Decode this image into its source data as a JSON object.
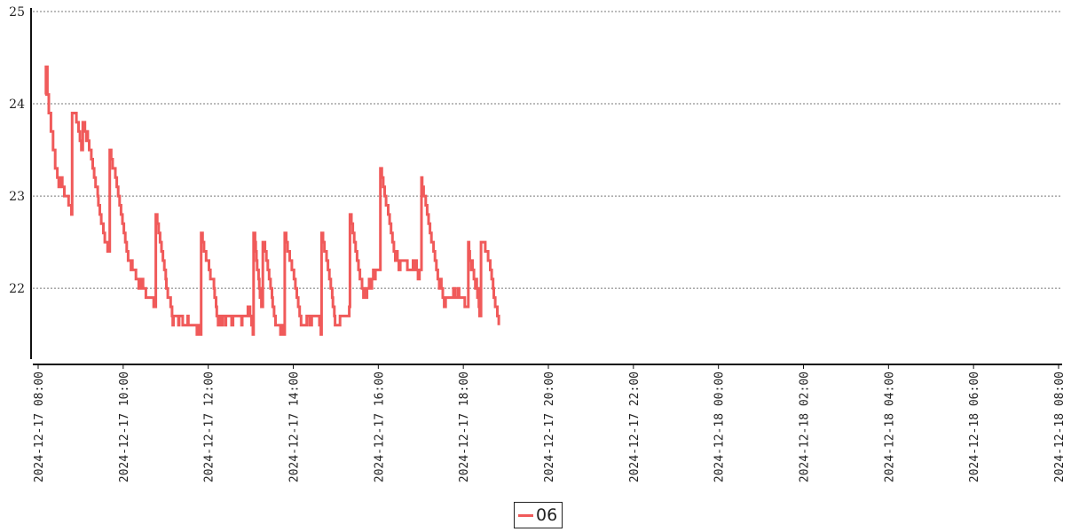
{
  "chart_data": {
    "type": "line",
    "title": "",
    "xlabel": "",
    "ylabel": "",
    "ylim": [
      21.3,
      25.0
    ],
    "xlim": [
      "2024-12-17 08:00",
      "2024-12-18 08:00"
    ],
    "y_ticks": [
      "22",
      "23",
      "24",
      "25"
    ],
    "x_ticks": [
      "2024-12-17 08:00",
      "2024-12-17 10:00",
      "2024-12-17 12:00",
      "2024-12-17 14:00",
      "2024-12-17 16:00",
      "2024-12-17 18:00",
      "2024-12-17 20:00",
      "2024-12-17 22:00",
      "2024-12-18 00:00",
      "2024-12-18 02:00",
      "2024-12-18 04:00",
      "2024-12-18 06:00",
      "2024-12-18 08:00"
    ],
    "grid": "horizontal dotted",
    "legend_placement": "bottom-center",
    "color": "#f05a5a",
    "series": [
      {
        "name": "06",
        "points": [
          [
            "2024-12-17 08:10",
            24.1
          ],
          [
            "2024-12-17 08:11",
            24.4
          ],
          [
            "2024-12-17 08:13",
            24.1
          ],
          [
            "2024-12-17 08:15",
            23.9
          ],
          [
            "2024-12-17 08:18",
            23.7
          ],
          [
            "2024-12-17 08:21",
            23.5
          ],
          [
            "2024-12-17 08:24",
            23.3
          ],
          [
            "2024-12-17 08:27",
            23.2
          ],
          [
            "2024-12-17 08:29",
            23.1
          ],
          [
            "2024-12-17 08:30",
            23.2
          ],
          [
            "2024-12-17 08:31",
            23.1
          ],
          [
            "2024-12-17 08:32",
            23.2
          ],
          [
            "2024-12-17 08:34",
            23.1
          ],
          [
            "2024-12-17 08:37",
            23.0
          ],
          [
            "2024-12-17 08:43",
            22.9
          ],
          [
            "2024-12-17 08:47",
            22.8
          ],
          [
            "2024-12-17 08:48",
            23.9
          ],
          [
            "2024-12-17 08:54",
            23.8
          ],
          [
            "2024-12-17 08:57",
            23.7
          ],
          [
            "2024-12-17 08:59",
            23.6
          ],
          [
            "2024-12-17 09:01",
            23.5
          ],
          [
            "2024-12-17 09:03",
            23.8
          ],
          [
            "2024-12-17 09:06",
            23.7
          ],
          [
            "2024-12-17 09:08",
            23.6
          ],
          [
            "2024-12-17 09:09",
            23.7
          ],
          [
            "2024-12-17 09:10",
            23.6
          ],
          [
            "2024-12-17 09:12",
            23.5
          ],
          [
            "2024-12-17 09:15",
            23.4
          ],
          [
            "2024-12-17 09:17",
            23.3
          ],
          [
            "2024-12-17 09:19",
            23.2
          ],
          [
            "2024-12-17 09:21",
            23.1
          ],
          [
            "2024-12-17 09:24",
            23.0
          ],
          [
            "2024-12-17 09:25",
            22.9
          ],
          [
            "2024-12-17 09:27",
            22.8
          ],
          [
            "2024-12-17 09:29",
            22.7
          ],
          [
            "2024-12-17 09:32",
            22.6
          ],
          [
            "2024-12-17 09:34",
            22.5
          ],
          [
            "2024-12-17 09:38",
            22.4
          ],
          [
            "2024-12-17 09:39",
            22.5
          ],
          [
            "2024-12-17 09:40",
            22.4
          ],
          [
            "2024-12-17 09:41",
            23.5
          ],
          [
            "2024-12-17 09:43",
            23.4
          ],
          [
            "2024-12-17 09:45",
            23.3
          ],
          [
            "2024-12-17 09:49",
            23.2
          ],
          [
            "2024-12-17 09:51",
            23.1
          ],
          [
            "2024-12-17 09:53",
            23.0
          ],
          [
            "2024-12-17 09:55",
            22.9
          ],
          [
            "2024-12-17 09:57",
            22.8
          ],
          [
            "2024-12-17 09:59",
            22.7
          ],
          [
            "2024-12-17 10:01",
            22.6
          ],
          [
            "2024-12-17 10:03",
            22.5
          ],
          [
            "2024-12-17 10:05",
            22.4
          ],
          [
            "2024-12-17 10:07",
            22.3
          ],
          [
            "2024-12-17 10:11",
            22.2
          ],
          [
            "2024-12-17 10:12",
            22.3
          ],
          [
            "2024-12-17 10:13",
            22.2
          ],
          [
            "2024-12-17 10:18",
            22.1
          ],
          [
            "2024-12-17 10:22",
            22.0
          ],
          [
            "2024-12-17 10:23",
            22.1
          ],
          [
            "2024-12-17 10:25",
            22.0
          ],
          [
            "2024-12-17 10:26",
            22.1
          ],
          [
            "2024-12-17 10:28",
            22.0
          ],
          [
            "2024-12-17 10:32",
            21.9
          ],
          [
            "2024-12-17 10:43",
            21.8
          ],
          [
            "2024-12-17 10:46",
            22.8
          ],
          [
            "2024-12-17 10:48",
            22.7
          ],
          [
            "2024-12-17 10:50",
            22.6
          ],
          [
            "2024-12-17 10:52",
            22.5
          ],
          [
            "2024-12-17 10:54",
            22.4
          ],
          [
            "2024-12-17 10:56",
            22.3
          ],
          [
            "2024-12-17 10:58",
            22.2
          ],
          [
            "2024-12-17 11:00",
            22.1
          ],
          [
            "2024-12-17 11:01",
            22.0
          ],
          [
            "2024-12-17 11:03",
            21.9
          ],
          [
            "2024-12-17 11:07",
            21.8
          ],
          [
            "2024-12-17 11:09",
            21.7
          ],
          [
            "2024-12-17 11:10",
            21.6
          ],
          [
            "2024-12-17 11:11",
            21.7
          ],
          [
            "2024-12-17 11:18",
            21.6
          ],
          [
            "2024-12-17 11:19",
            21.7
          ],
          [
            "2024-12-17 11:24",
            21.6
          ],
          [
            "2024-12-17 11:31",
            21.7
          ],
          [
            "2024-12-17 11:32",
            21.6
          ],
          [
            "2024-12-17 11:44",
            21.5
          ],
          [
            "2024-12-17 11:46",
            21.6
          ],
          [
            "2024-12-17 11:47",
            21.5
          ],
          [
            "2024-12-17 11:50",
            22.6
          ],
          [
            "2024-12-17 11:52",
            22.5
          ],
          [
            "2024-12-17 11:54",
            22.4
          ],
          [
            "2024-12-17 11:57",
            22.3
          ],
          [
            "2024-12-17 12:01",
            22.2
          ],
          [
            "2024-12-17 12:03",
            22.1
          ],
          [
            "2024-12-17 12:08",
            22.0
          ],
          [
            "2024-12-17 12:09",
            21.9
          ],
          [
            "2024-12-17 12:11",
            21.8
          ],
          [
            "2024-12-17 12:12",
            21.7
          ],
          [
            "2024-12-17 12:14",
            21.6
          ],
          [
            "2024-12-17 12:16",
            21.7
          ],
          [
            "2024-12-17 12:19",
            21.6
          ],
          [
            "2024-12-17 12:20",
            21.7
          ],
          [
            "2024-12-17 12:24",
            21.6
          ],
          [
            "2024-12-17 12:25",
            21.7
          ],
          [
            "2024-12-17 12:33",
            21.6
          ],
          [
            "2024-12-17 12:35",
            21.7
          ],
          [
            "2024-12-17 12:47",
            21.6
          ],
          [
            "2024-12-17 12:48",
            21.7
          ],
          [
            "2024-12-17 12:56",
            21.8
          ],
          [
            "2024-12-17 12:59",
            21.7
          ],
          [
            "2024-12-17 13:01",
            21.6
          ],
          [
            "2024-12-17 13:03",
            21.5
          ],
          [
            "2024-12-17 13:04",
            22.6
          ],
          [
            "2024-12-17 13:06",
            22.5
          ],
          [
            "2024-12-17 13:07",
            22.4
          ],
          [
            "2024-12-17 13:08",
            22.3
          ],
          [
            "2024-12-17 13:09",
            22.2
          ],
          [
            "2024-12-17 13:11",
            22.1
          ],
          [
            "2024-12-17 13:12",
            22.0
          ],
          [
            "2024-12-17 13:13",
            21.9
          ],
          [
            "2024-12-17 13:14",
            22.0
          ],
          [
            "2024-12-17 13:15",
            21.8
          ],
          [
            "2024-12-17 13:17",
            22.5
          ],
          [
            "2024-12-17 13:20",
            22.4
          ],
          [
            "2024-12-17 13:22",
            22.3
          ],
          [
            "2024-12-17 13:24",
            22.2
          ],
          [
            "2024-12-17 13:26",
            22.1
          ],
          [
            "2024-12-17 13:28",
            22.0
          ],
          [
            "2024-12-17 13:30",
            21.9
          ],
          [
            "2024-12-17 13:31",
            21.8
          ],
          [
            "2024-12-17 13:33",
            21.7
          ],
          [
            "2024-12-17 13:35",
            21.6
          ],
          [
            "2024-12-17 13:42",
            21.5
          ],
          [
            "2024-12-17 13:44",
            21.6
          ],
          [
            "2024-12-17 13:45",
            21.5
          ],
          [
            "2024-12-17 13:48",
            22.6
          ],
          [
            "2024-12-17 13:50",
            22.5
          ],
          [
            "2024-12-17 13:52",
            22.4
          ],
          [
            "2024-12-17 13:55",
            22.3
          ],
          [
            "2024-12-17 13:58",
            22.2
          ],
          [
            "2024-12-17 14:01",
            22.1
          ],
          [
            "2024-12-17 14:03",
            22.0
          ],
          [
            "2024-12-17 14:05",
            21.9
          ],
          [
            "2024-12-17 14:07",
            21.8
          ],
          [
            "2024-12-17 14:09",
            21.7
          ],
          [
            "2024-12-17 14:11",
            21.6
          ],
          [
            "2024-12-17 14:19",
            21.7
          ],
          [
            "2024-12-17 14:23",
            21.6
          ],
          [
            "2024-12-17 14:26",
            21.7
          ],
          [
            "2024-12-17 14:35",
            21.7
          ],
          [
            "2024-12-17 14:37",
            21.6
          ],
          [
            "2024-12-17 14:39",
            21.5
          ],
          [
            "2024-12-17 14:40",
            22.6
          ],
          [
            "2024-12-17 14:42",
            22.5
          ],
          [
            "2024-12-17 14:44",
            22.4
          ],
          [
            "2024-12-17 14:47",
            22.3
          ],
          [
            "2024-12-17 14:49",
            22.2
          ],
          [
            "2024-12-17 14:51",
            22.1
          ],
          [
            "2024-12-17 14:53",
            22.0
          ],
          [
            "2024-12-17 14:55",
            21.9
          ],
          [
            "2024-12-17 14:56",
            21.8
          ],
          [
            "2024-12-17 14:58",
            21.7
          ],
          [
            "2024-12-17 14:59",
            21.6
          ],
          [
            "2024-12-17 15:06",
            21.7
          ],
          [
            "2024-12-17 15:19",
            21.8
          ],
          [
            "2024-12-17 15:20",
            22.8
          ],
          [
            "2024-12-17 15:22",
            22.7
          ],
          [
            "2024-12-17 15:24",
            22.6
          ],
          [
            "2024-12-17 15:26",
            22.5
          ],
          [
            "2024-12-17 15:28",
            22.4
          ],
          [
            "2024-12-17 15:30",
            22.3
          ],
          [
            "2024-12-17 15:32",
            22.2
          ],
          [
            "2024-12-17 15:34",
            22.1
          ],
          [
            "2024-12-17 15:37",
            22.0
          ],
          [
            "2024-12-17 15:39",
            21.9
          ],
          [
            "2024-12-17 15:41",
            22.0
          ],
          [
            "2024-12-17 15:42",
            21.9
          ],
          [
            "2024-12-17 15:44",
            22.0
          ],
          [
            "2024-12-17 15:47",
            22.1
          ],
          [
            "2024-12-17 15:49",
            22.0
          ],
          [
            "2024-12-17 15:51",
            22.1
          ],
          [
            "2024-12-17 15:53",
            22.2
          ],
          [
            "2024-12-17 15:55",
            22.1
          ],
          [
            "2024-12-17 15:56",
            22.2
          ],
          [
            "2024-12-17 16:03",
            23.3
          ],
          [
            "2024-12-17 16:05",
            23.2
          ],
          [
            "2024-12-17 16:07",
            23.1
          ],
          [
            "2024-12-17 16:09",
            23.0
          ],
          [
            "2024-12-17 16:11",
            22.9
          ],
          [
            "2024-12-17 16:14",
            22.8
          ],
          [
            "2024-12-17 16:16",
            22.7
          ],
          [
            "2024-12-17 16:18",
            22.6
          ],
          [
            "2024-12-17 16:20",
            22.5
          ],
          [
            "2024-12-17 16:22",
            22.4
          ],
          [
            "2024-12-17 16:24",
            22.3
          ],
          [
            "2024-12-17 16:25",
            22.4
          ],
          [
            "2024-12-17 16:27",
            22.3
          ],
          [
            "2024-12-17 16:29",
            22.2
          ],
          [
            "2024-12-17 16:31",
            22.3
          ],
          [
            "2024-12-17 16:33",
            22.3
          ],
          [
            "2024-12-17 16:41",
            22.2
          ],
          [
            "2024-12-17 16:47",
            22.2
          ],
          [
            "2024-12-17 16:49",
            22.3
          ],
          [
            "2024-12-17 16:51",
            22.2
          ],
          [
            "2024-12-17 16:52",
            22.3
          ],
          [
            "2024-12-17 16:54",
            22.2
          ],
          [
            "2024-12-17 16:56",
            22.1
          ],
          [
            "2024-12-17 16:58",
            22.2
          ],
          [
            "2024-12-17 17:01",
            23.2
          ],
          [
            "2024-12-17 17:02",
            23.1
          ],
          [
            "2024-12-17 17:04",
            23.0
          ],
          [
            "2024-12-17 17:07",
            22.9
          ],
          [
            "2024-12-17 17:09",
            22.8
          ],
          [
            "2024-12-17 17:11",
            22.7
          ],
          [
            "2024-12-17 17:13",
            22.6
          ],
          [
            "2024-12-17 17:15",
            22.5
          ],
          [
            "2024-12-17 17:18",
            22.4
          ],
          [
            "2024-12-17 17:20",
            22.3
          ],
          [
            "2024-12-17 17:22",
            22.2
          ],
          [
            "2024-12-17 17:24",
            22.1
          ],
          [
            "2024-12-17 17:26",
            22.0
          ],
          [
            "2024-12-17 17:28",
            22.1
          ],
          [
            "2024-12-17 17:29",
            22.0
          ],
          [
            "2024-12-17 17:31",
            21.9
          ],
          [
            "2024-12-17 17:33",
            21.8
          ],
          [
            "2024-12-17 17:35",
            21.9
          ],
          [
            "2024-12-17 17:46",
            22.0
          ],
          [
            "2024-12-17 17:48",
            21.9
          ],
          [
            "2024-12-17 17:52",
            22.0
          ],
          [
            "2024-12-17 17:54",
            21.9
          ],
          [
            "2024-12-17 18:02",
            21.8
          ],
          [
            "2024-12-17 18:07",
            22.5
          ],
          [
            "2024-12-17 18:08",
            22.4
          ],
          [
            "2024-12-17 18:09",
            22.3
          ],
          [
            "2024-12-17 18:11",
            22.2
          ],
          [
            "2024-12-17 18:12",
            22.3
          ],
          [
            "2024-12-17 18:13",
            22.2
          ],
          [
            "2024-12-17 18:15",
            22.1
          ],
          [
            "2024-12-17 18:17",
            22.0
          ],
          [
            "2024-12-17 18:18",
            22.1
          ],
          [
            "2024-12-17 18:19",
            22.0
          ],
          [
            "2024-12-17 18:20",
            21.9
          ],
          [
            "2024-12-17 18:21",
            22.0
          ],
          [
            "2024-12-17 18:22",
            21.8
          ],
          [
            "2024-12-17 18:23",
            21.7
          ],
          [
            "2024-12-17 18:25",
            22.5
          ],
          [
            "2024-12-17 18:31",
            22.4
          ],
          [
            "2024-12-17 18:35",
            22.3
          ],
          [
            "2024-12-17 18:38",
            22.2
          ],
          [
            "2024-12-17 18:40",
            22.1
          ],
          [
            "2024-12-17 18:42",
            22.0
          ],
          [
            "2024-12-17 18:43",
            21.9
          ],
          [
            "2024-12-17 18:45",
            21.8
          ],
          [
            "2024-12-17 18:48",
            21.7
          ],
          [
            "2024-12-17 18:50",
            21.6
          ]
        ]
      }
    ]
  },
  "legend": {
    "label": "06",
    "color": "#f05a5a"
  }
}
